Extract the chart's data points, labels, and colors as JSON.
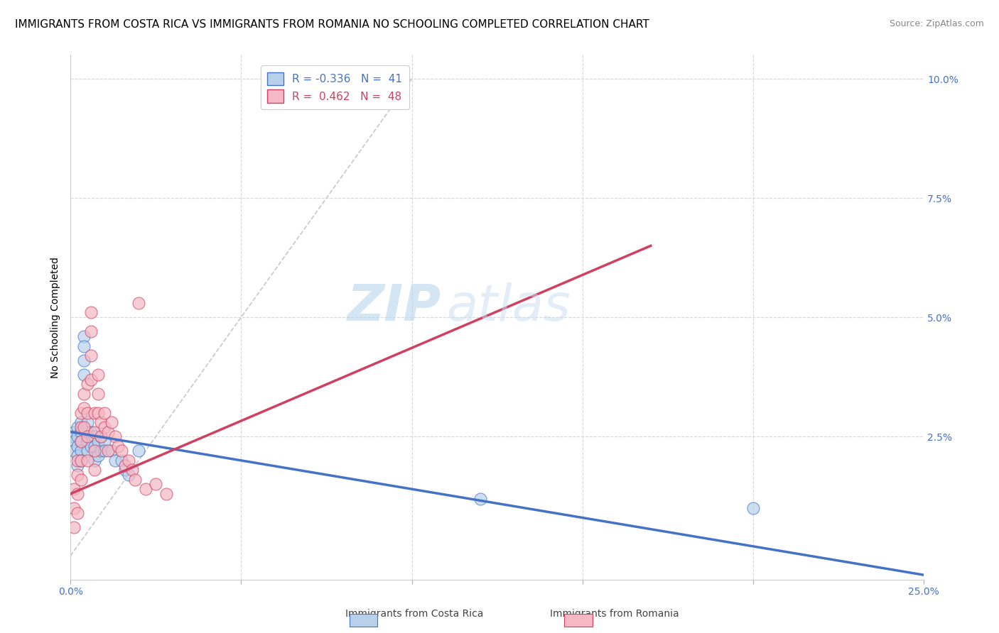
{
  "title": "IMMIGRANTS FROM COSTA RICA VS IMMIGRANTS FROM ROMANIA NO SCHOOLING COMPLETED CORRELATION CHART",
  "source": "Source: ZipAtlas.com",
  "ylabel": "No Schooling Completed",
  "right_yticks": [
    "10.0%",
    "7.5%",
    "5.0%",
    "2.5%"
  ],
  "right_ytick_vals": [
    0.1,
    0.075,
    0.05,
    0.025
  ],
  "xlim": [
    0.0,
    0.25
  ],
  "ylim": [
    -0.005,
    0.105
  ],
  "color_blue": "#b8d0ea",
  "color_pink": "#f5b8c4",
  "color_blue_line": "#4472c4",
  "color_pink_line": "#d04060",
  "color_diag": "#c8c8c8",
  "scatter_blue_x": [
    0.001,
    0.001,
    0.001,
    0.001,
    0.002,
    0.002,
    0.002,
    0.002,
    0.002,
    0.003,
    0.003,
    0.003,
    0.003,
    0.003,
    0.004,
    0.004,
    0.004,
    0.004,
    0.005,
    0.005,
    0.005,
    0.005,
    0.006,
    0.006,
    0.007,
    0.007,
    0.007,
    0.008,
    0.008,
    0.009,
    0.009,
    0.01,
    0.01,
    0.012,
    0.013,
    0.015,
    0.016,
    0.017,
    0.02,
    0.2,
    0.12
  ],
  "scatter_blue_y": [
    0.026,
    0.025,
    0.024,
    0.022,
    0.027,
    0.025,
    0.023,
    0.021,
    0.019,
    0.028,
    0.026,
    0.024,
    0.022,
    0.02,
    0.046,
    0.044,
    0.041,
    0.038,
    0.028,
    0.026,
    0.024,
    0.022,
    0.026,
    0.023,
    0.025,
    0.023,
    0.02,
    0.024,
    0.021,
    0.025,
    0.022,
    0.024,
    0.022,
    0.022,
    0.02,
    0.02,
    0.018,
    0.017,
    0.022,
    0.01,
    0.012
  ],
  "scatter_pink_x": [
    0.001,
    0.001,
    0.001,
    0.002,
    0.002,
    0.002,
    0.002,
    0.003,
    0.003,
    0.003,
    0.003,
    0.003,
    0.004,
    0.004,
    0.004,
    0.005,
    0.005,
    0.005,
    0.005,
    0.006,
    0.006,
    0.006,
    0.006,
    0.007,
    0.007,
    0.007,
    0.007,
    0.008,
    0.008,
    0.008,
    0.009,
    0.009,
    0.01,
    0.01,
    0.011,
    0.011,
    0.012,
    0.013,
    0.014,
    0.015,
    0.016,
    0.017,
    0.018,
    0.019,
    0.02,
    0.022,
    0.025,
    0.028
  ],
  "scatter_pink_y": [
    0.014,
    0.01,
    0.006,
    0.02,
    0.017,
    0.013,
    0.009,
    0.03,
    0.027,
    0.024,
    0.02,
    0.016,
    0.034,
    0.031,
    0.027,
    0.036,
    0.03,
    0.025,
    0.02,
    0.051,
    0.047,
    0.042,
    0.037,
    0.03,
    0.026,
    0.022,
    0.018,
    0.038,
    0.034,
    0.03,
    0.028,
    0.025,
    0.03,
    0.027,
    0.026,
    0.022,
    0.028,
    0.025,
    0.023,
    0.022,
    0.019,
    0.02,
    0.018,
    0.016,
    0.053,
    0.014,
    0.015,
    0.013
  ],
  "blue_line_x": [
    0.0,
    0.25
  ],
  "blue_line_y": [
    0.026,
    -0.004
  ],
  "pink_line_x": [
    0.0,
    0.17
  ],
  "pink_line_y": [
    0.013,
    0.065
  ],
  "diag_line_x": [
    0.0,
    0.1
  ],
  "diag_line_y": [
    0.0,
    0.1
  ],
  "watermark_zip": "ZIP",
  "watermark_atlas": "atlas",
  "title_fontsize": 11,
  "source_fontsize": 9,
  "legend_fontsize": 11,
  "axis_label_fontsize": 10,
  "tick_fontsize": 10
}
